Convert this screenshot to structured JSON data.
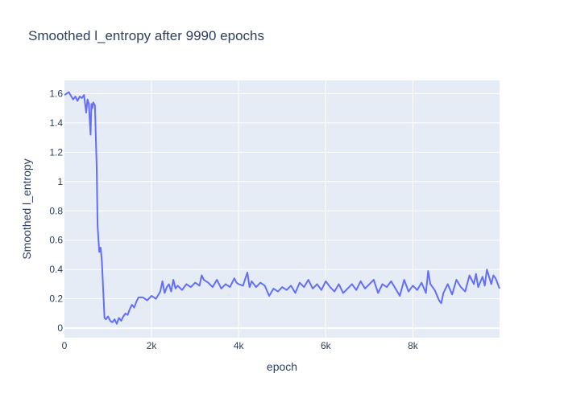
{
  "chart_data": {
    "type": "line",
    "title": "Smoothed l_entropy after 9990 epochs",
    "xlabel": "epoch",
    "ylabel": "Smoothed l_entropy",
    "xlim": [
      0,
      9990
    ],
    "ylim": [
      -0.065,
      1.69
    ],
    "x_ticks": [
      {
        "value": 0,
        "label": "0"
      },
      {
        "value": 2000,
        "label": "2k"
      },
      {
        "value": 4000,
        "label": "4k"
      },
      {
        "value": 6000,
        "label": "6k"
      },
      {
        "value": 8000,
        "label": "8k"
      }
    ],
    "y_ticks": [
      {
        "value": 0,
        "label": "0"
      },
      {
        "value": 0.2,
        "label": "0.2"
      },
      {
        "value": 0.4,
        "label": "0.4"
      },
      {
        "value": 0.6,
        "label": "0.6"
      },
      {
        "value": 0.8,
        "label": "0.8"
      },
      {
        "value": 1,
        "label": "1"
      },
      {
        "value": 1.2,
        "label": "1.2"
      },
      {
        "value": 1.4,
        "label": "1.4"
      },
      {
        "value": 1.6,
        "label": "1.6"
      }
    ],
    "grid": true,
    "colors": {
      "line": "#636efa",
      "plot_bg": "#e5ecf6",
      "grid": "#ffffff",
      "text": "#2a3f5f"
    },
    "series": [
      {
        "x": [
          0,
          100,
          200,
          250,
          300,
          350,
          400,
          450,
          500,
          530,
          560,
          600,
          620,
          640,
          660,
          700,
          740,
          760,
          800,
          830,
          860,
          900,
          920,
          950,
          1000,
          1050,
          1100,
          1150,
          1200,
          1250,
          1300,
          1350,
          1400,
          1450,
          1500,
          1550,
          1600,
          1650,
          1700,
          1800,
          1900,
          2000,
          2100,
          2200,
          2250,
          2300,
          2350,
          2400,
          2450,
          2500,
          2550,
          2600,
          2700,
          2800,
          2900,
          3000,
          3100,
          3150,
          3200,
          3300,
          3400,
          3500,
          3600,
          3700,
          3800,
          3900,
          3950,
          4000,
          4100,
          4200,
          4250,
          4300,
          4400,
          4500,
          4600,
          4700,
          4800,
          4900,
          5000,
          5100,
          5200,
          5300,
          5400,
          5500,
          5600,
          5700,
          5800,
          5900,
          6000,
          6100,
          6200,
          6300,
          6400,
          6500,
          6600,
          6700,
          6800,
          6900,
          7000,
          7100,
          7200,
          7300,
          7400,
          7500,
          7600,
          7700,
          7800,
          7900,
          8000,
          8100,
          8200,
          8300,
          8350,
          8400,
          8500,
          8600,
          8650,
          8700,
          8800,
          8900,
          9000,
          9100,
          9200,
          9300,
          9400,
          9450,
          9500,
          9600,
          9650,
          9700,
          9800,
          9850,
          9900,
          9990
        ],
        "y": [
          1.59,
          1.61,
          1.56,
          1.58,
          1.55,
          1.58,
          1.57,
          1.59,
          1.47,
          1.56,
          1.53,
          1.32,
          1.53,
          1.5,
          1.54,
          1.52,
          1.1,
          0.7,
          0.52,
          0.55,
          0.45,
          0.2,
          0.07,
          0.06,
          0.08,
          0.05,
          0.04,
          0.06,
          0.03,
          0.07,
          0.05,
          0.08,
          0.1,
          0.09,
          0.13,
          0.16,
          0.14,
          0.18,
          0.21,
          0.21,
          0.19,
          0.22,
          0.2,
          0.25,
          0.32,
          0.24,
          0.28,
          0.3,
          0.25,
          0.33,
          0.27,
          0.29,
          0.26,
          0.3,
          0.28,
          0.31,
          0.29,
          0.36,
          0.33,
          0.31,
          0.28,
          0.33,
          0.27,
          0.3,
          0.28,
          0.34,
          0.31,
          0.3,
          0.29,
          0.38,
          0.28,
          0.32,
          0.28,
          0.31,
          0.29,
          0.22,
          0.27,
          0.25,
          0.28,
          0.26,
          0.29,
          0.24,
          0.31,
          0.28,
          0.33,
          0.27,
          0.3,
          0.26,
          0.32,
          0.28,
          0.25,
          0.3,
          0.24,
          0.27,
          0.3,
          0.26,
          0.32,
          0.27,
          0.3,
          0.33,
          0.24,
          0.3,
          0.28,
          0.32,
          0.27,
          0.22,
          0.33,
          0.25,
          0.29,
          0.26,
          0.31,
          0.24,
          0.39,
          0.3,
          0.26,
          0.19,
          0.17,
          0.24,
          0.3,
          0.23,
          0.33,
          0.28,
          0.25,
          0.36,
          0.3,
          0.37,
          0.28,
          0.35,
          0.29,
          0.4,
          0.3,
          0.36,
          0.34,
          0.27
        ]
      }
    ]
  }
}
